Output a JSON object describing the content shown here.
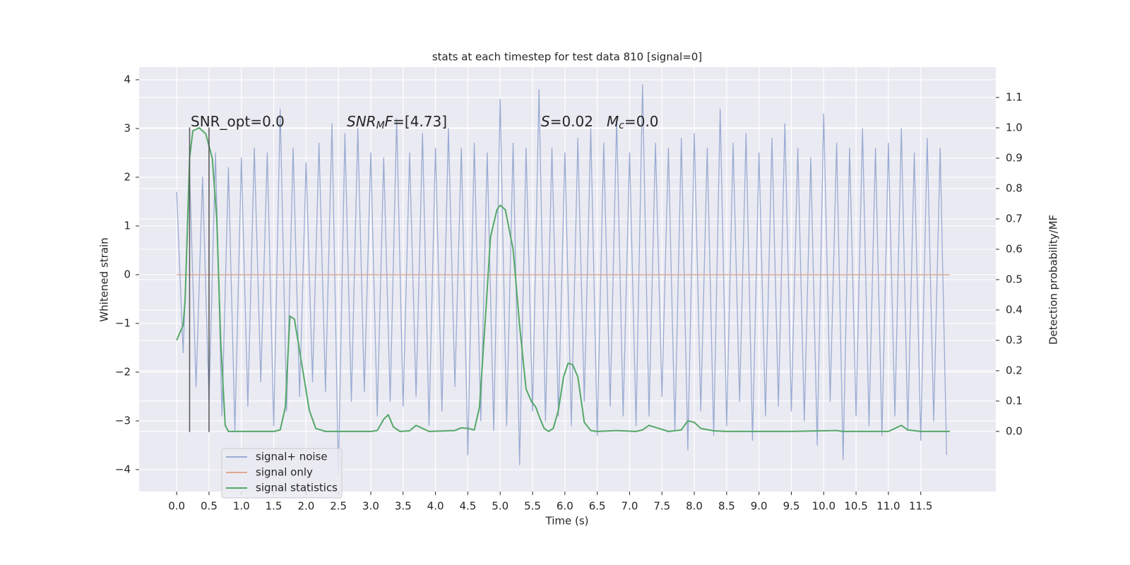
{
  "chart_data": {
    "type": "line",
    "title": "stats at each timestep for test data 810 [signal=0]",
    "xlabel": "Time (s)",
    "ylabel": "Whitened strain",
    "y2label": "Detection probability/MF",
    "background": "#eaeaf2",
    "grid": true,
    "legend": "lower left",
    "xlim": [
      -0.58,
      12.66
    ],
    "ylim": [
      -4.45,
      4.26
    ],
    "y2lim": [
      -0.198,
      1.2
    ],
    "xticks": [
      {
        "value": 0,
        "label": "0.0"
      },
      {
        "value": 0.5,
        "label": "0.5"
      },
      {
        "value": 1,
        "label": "1.0"
      },
      {
        "value": 1.5,
        "label": "1.5"
      },
      {
        "value": 2,
        "label": "2.0"
      },
      {
        "value": 2.5,
        "label": "2.5"
      },
      {
        "value": 3,
        "label": "3.0"
      },
      {
        "value": 3.5,
        "label": "3.5"
      },
      {
        "value": 4,
        "label": "4.0"
      },
      {
        "value": 4.5,
        "label": "4.5"
      },
      {
        "value": 5,
        "label": "5.0"
      },
      {
        "value": 5.5,
        "label": "5.5"
      },
      {
        "value": 6,
        "label": "6.0"
      },
      {
        "value": 6.5,
        "label": "6.5"
      },
      {
        "value": 7,
        "label": "7.0"
      },
      {
        "value": 7.5,
        "label": "7.5"
      },
      {
        "value": 8,
        "label": "8.0"
      },
      {
        "value": 8.5,
        "label": "8.5"
      },
      {
        "value": 9,
        "label": "9.0"
      },
      {
        "value": 9.5,
        "label": "9.5"
      },
      {
        "value": 10,
        "label": "10.0"
      },
      {
        "value": 10.5,
        "label": "10.5"
      },
      {
        "value": 11,
        "label": "11.0"
      },
      {
        "value": 11.5,
        "label": "11.5"
      }
    ],
    "yticks": [
      {
        "value": -4,
        "label": "−4"
      },
      {
        "value": -3,
        "label": "−3"
      },
      {
        "value": -2,
        "label": "−2"
      },
      {
        "value": -1,
        "label": "−1"
      },
      0,
      1,
      2,
      3,
      4
    ],
    "y2ticks": [
      {
        "value": 0,
        "label": "0.0"
      },
      {
        "value": 0.1,
        "label": "0.1"
      },
      {
        "value": 0.2,
        "label": "0.2"
      },
      {
        "value": 0.3,
        "label": "0.3"
      },
      {
        "value": 0.4,
        "label": "0.4"
      },
      {
        "value": 0.5,
        "label": "0.5"
      },
      {
        "value": 0.6,
        "label": "0.6"
      },
      {
        "value": 0.7,
        "label": "0.7"
      },
      {
        "value": 0.8,
        "label": "0.8"
      },
      {
        "value": 0.9,
        "label": "0.9"
      },
      {
        "value": 1,
        "label": "1.0"
      },
      {
        "value": 1.1,
        "label": "1.1"
      }
    ],
    "series": [
      {
        "name": "signal+ noise",
        "color": "#9aabd2",
        "x": [
          0.0,
          0.1,
          0.2,
          0.3,
          0.4,
          0.5,
          0.6,
          0.7,
          0.8,
          0.9,
          1.0,
          1.1,
          1.2,
          1.3,
          1.4,
          1.5,
          1.6,
          1.7,
          1.8,
          1.9,
          2.0,
          2.1,
          2.2,
          2.3,
          2.4,
          2.5,
          2.6,
          2.7,
          2.8,
          2.9,
          3.0,
          3.1,
          3.2,
          3.3,
          3.4,
          3.5,
          3.6,
          3.7,
          3.8,
          3.9,
          4.0,
          4.1,
          4.2,
          4.3,
          4.4,
          4.5,
          4.6,
          4.7,
          4.8,
          4.9,
          5.0,
          5.1,
          5.2,
          5.3,
          5.4,
          5.5,
          5.6,
          5.7,
          5.8,
          5.9,
          6.0,
          6.1,
          6.2,
          6.3,
          6.4,
          6.5,
          6.6,
          6.7,
          6.8,
          6.9,
          7.0,
          7.1,
          7.2,
          7.3,
          7.4,
          7.5,
          7.6,
          7.7,
          7.8,
          7.9,
          8.0,
          8.1,
          8.2,
          8.3,
          8.4,
          8.5,
          8.6,
          8.7,
          8.8,
          8.9,
          9.0,
          9.1,
          9.2,
          9.3,
          9.4,
          9.5,
          9.6,
          9.7,
          9.8,
          9.9,
          10.0,
          10.1,
          10.2,
          10.3,
          10.4,
          10.5,
          10.6,
          10.7,
          10.8,
          10.9,
          11.0,
          11.1,
          11.2,
          11.3,
          11.4,
          11.5,
          11.6,
          11.7,
          11.8,
          11.9
        ],
        "values": [
          1.7,
          -1.6,
          2.1,
          -2.3,
          2.0,
          -2.6,
          2.5,
          -2.9,
          2.2,
          -3.2,
          2.4,
          -2.7,
          2.6,
          -2.2,
          2.5,
          -3.1,
          3.4,
          -2.8,
          2.6,
          -2.5,
          2.3,
          -2.2,
          2.7,
          -2.4,
          3.1,
          -4.1,
          2.9,
          -2.6,
          3.0,
          -2.4,
          2.5,
          -2.9,
          2.4,
          -2.6,
          3.2,
          -2.7,
          2.5,
          -2.5,
          2.9,
          -3.1,
          2.6,
          -2.8,
          3.0,
          -2.3,
          2.6,
          -3.7,
          2.7,
          -3.0,
          2.5,
          -3.2,
          3.6,
          -3.1,
          2.7,
          -3.9,
          2.6,
          -2.8,
          3.8,
          -3.0,
          2.6,
          -2.9,
          2.5,
          -3.1,
          2.8,
          -2.6,
          3.0,
          -3.3,
          2.7,
          -2.7,
          3.2,
          -2.9,
          2.5,
          -3.1,
          3.9,
          -2.9,
          2.7,
          -2.5,
          2.6,
          -3.2,
          2.8,
          -3.6,
          2.9,
          -2.8,
          2.6,
          -3.3,
          3.4,
          -3.1,
          2.7,
          -2.6,
          2.9,
          -3.4,
          2.5,
          -2.9,
          2.8,
          -2.7,
          3.1,
          -2.8,
          2.6,
          -3.0,
          2.4,
          -3.5,
          3.3,
          -2.6,
          2.7,
          -3.8,
          2.6,
          -2.9,
          3.0,
          -3.1,
          2.6,
          -3.3,
          2.7,
          -2.9,
          3.0,
          -3.2,
          2.5,
          -3.4,
          2.8,
          -3.0,
          2.6,
          -3.7
        ]
      },
      {
        "name": "signal only",
        "color": "#e0a88e",
        "x": [
          0.0,
          11.95
        ],
        "values": [
          0,
          0
        ]
      },
      {
        "name": "signal statistics",
        "color": "#55a868",
        "axis": "y2",
        "x": [
          0,
          0.1,
          0.13,
          0.2,
          0.25,
          0.35,
          0.45,
          0.55,
          0.62,
          0.68,
          0.75,
          0.8,
          1.0,
          1.5,
          1.6,
          1.68,
          1.75,
          1.82,
          1.95,
          2.05,
          2.15,
          2.3,
          3.0,
          3.1,
          3.2,
          3.27,
          3.35,
          3.45,
          3.6,
          3.7,
          3.8,
          3.9,
          4.3,
          4.4,
          4.5,
          4.6,
          4.68,
          4.78,
          4.85,
          4.95,
          5.0,
          5.08,
          5.2,
          5.3,
          5.4,
          5.48,
          5.55,
          5.62,
          5.68,
          5.75,
          5.82,
          5.9,
          5.98,
          6.05,
          6.12,
          6.2,
          6.3,
          6.4,
          6.5,
          6.8,
          7.1,
          7.2,
          7.3,
          7.45,
          7.6,
          7.8,
          7.9,
          8.0,
          8.1,
          8.3,
          8.5,
          9.5,
          10.2,
          10.3,
          11.0,
          11.2,
          11.3,
          11.5,
          11.95
        ],
        "values": [
          0.3,
          0.35,
          0.43,
          0.9,
          0.99,
          1.0,
          0.98,
          0.9,
          0.7,
          0.3,
          0.02,
          0.0,
          0.0,
          0.0,
          0.005,
          0.08,
          0.38,
          0.37,
          0.2,
          0.07,
          0.01,
          0.0,
          0.0,
          0.003,
          0.04,
          0.055,
          0.015,
          0.0,
          0.002,
          0.02,
          0.01,
          0.0,
          0.003,
          0.012,
          0.01,
          0.005,
          0.08,
          0.4,
          0.64,
          0.73,
          0.745,
          0.73,
          0.6,
          0.35,
          0.14,
          0.1,
          0.08,
          0.04,
          0.01,
          0.0,
          0.01,
          0.07,
          0.18,
          0.225,
          0.22,
          0.18,
          0.03,
          0.003,
          0.0,
          0.003,
          0.0,
          0.005,
          0.02,
          0.01,
          0.0,
          0.005,
          0.035,
          0.03,
          0.01,
          0.002,
          0.0,
          0.0,
          0.003,
          0.0,
          0.0,
          0.02,
          0.005,
          0.0,
          0.0
        ]
      }
    ],
    "vlines": {
      "x": [
        0.2,
        0.5
      ],
      "ymin": -3.23,
      "ymax": 3.02,
      "color": "#555555"
    },
    "annotations": [
      [
        {
          "text": "SNR_opt=0.0"
        }
      ],
      [
        {
          "text": "SNR",
          "style": "italic"
        },
        {
          "text": "M",
          "style": "italic-sub"
        },
        {
          "text": "F",
          "style": "italic"
        },
        {
          "text": "=[4.73]"
        }
      ],
      [
        {
          "text": "S",
          "style": "italic"
        },
        {
          "text": "=0.02"
        }
      ],
      [
        {
          "text": "M",
          "style": "italic"
        },
        {
          "text": "c",
          "style": "italic-sub"
        },
        {
          "text": "=0.0"
        }
      ]
    ]
  }
}
